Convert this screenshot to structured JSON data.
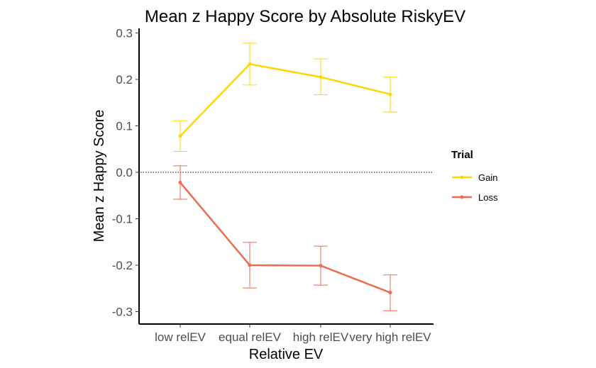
{
  "chart_data": {
    "type": "line",
    "title": "Mean z Happy Score by Absolute RiskyEV",
    "xlabel": "Relative EV",
    "ylabel": "Mean z Happy Score",
    "categories": [
      "low relEV",
      "equal relEV",
      "high relEV",
      "very high relEV"
    ],
    "ylim": [
      -0.32,
      0.31
    ],
    "yticks": [
      "0.3",
      "0.2",
      "0.1",
      "0.0",
      "-0.1",
      "-0.2",
      "-0.3"
    ],
    "ytick_values": [
      0.3,
      0.2,
      0.1,
      0.0,
      -0.1,
      -0.2,
      -0.3
    ],
    "reference_line": 0.0,
    "grid": false,
    "legend_title": "Trial",
    "legend_position": "right",
    "series": [
      {
        "name": "Gain",
        "color": "#FFD700",
        "values": [
          0.078,
          0.233,
          0.205,
          0.168
        ],
        "error_low": [
          0.045,
          0.188,
          0.167,
          0.13
        ],
        "error_high": [
          0.111,
          0.278,
          0.244,
          0.205
        ]
      },
      {
        "name": "Loss",
        "color": "#EE6A50",
        "values": [
          -0.022,
          -0.2,
          -0.201,
          -0.259
        ],
        "error_low": [
          -0.058,
          -0.249,
          -0.243,
          -0.298
        ],
        "error_high": [
          0.014,
          -0.151,
          -0.159,
          -0.221
        ]
      }
    ]
  }
}
